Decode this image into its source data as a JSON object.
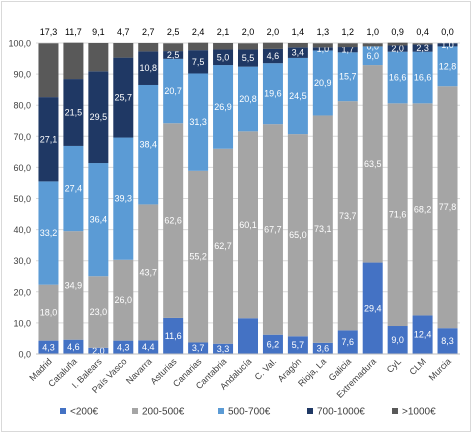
{
  "chart_data": {
    "type": "bar",
    "stacked": true,
    "categories": [
      "Madrid",
      "Cataluña",
      "I. Balears",
      "País Vasco",
      "Navarra",
      "Asturias",
      "Canarias",
      "Cantabria",
      "Andalucía",
      "C. Val.",
      "Aragón",
      "Rioja, La",
      "Galicia",
      "Extremadura",
      "CyL",
      "CLM",
      "Murcia"
    ],
    "series": [
      {
        "name": "<200€",
        "color": "#4472c4",
        "label_color": "#ffffff",
        "values": [
          4.3,
          4.6,
          2.0,
          4.3,
          4.4,
          11.6,
          3.7,
          3.3,
          11.5,
          6.2,
          5.7,
          3.6,
          7.6,
          29.4,
          9.0,
          12.4,
          8.3
        ],
        "labels": [
          "4,3",
          "4,6",
          "2,0",
          "4,3",
          "4,4",
          "11,6",
          "3,7",
          "3,3",
          "",
          "6,2",
          "5,7",
          "3,6",
          "7,6",
          "29,4",
          "9,0",
          "12,4",
          "8,3"
        ]
      },
      {
        "name": "200-500€",
        "color": "#a5a5a5",
        "label_color": "#ffffff",
        "values": [
          18.0,
          34.9,
          23.0,
          26.0,
          43.7,
          62.6,
          55.2,
          62.7,
          60.1,
          67.7,
          65.0,
          73.1,
          73.7,
          63.5,
          71.6,
          68.2,
          77.8
        ],
        "labels": [
          "18,0",
          "34,9",
          "23,0",
          "26,0",
          "43,7",
          "62,6",
          "55,2",
          "62,7",
          "60,1",
          "67,7",
          "65,0",
          "73,1",
          "73,7",
          "63,5",
          "71,6",
          "68,2",
          "77,8"
        ]
      },
      {
        "name": "500-700€",
        "color": "#5b9bd5",
        "label_color": "#ffffff",
        "values": [
          33.2,
          27.4,
          36.4,
          39.3,
          38.4,
          20.7,
          31.3,
          26.9,
          20.8,
          19.6,
          24.5,
          20.9,
          15.7,
          6.0,
          16.6,
          16.6,
          12.8
        ],
        "labels": [
          "33,2",
          "27,4",
          "36,4",
          "39,3",
          "38,4",
          "20,7",
          "31,3",
          "26,9",
          "20,8",
          "19,6",
          "24,5",
          "20,9",
          "15,7",
          "6,0",
          "16,6",
          "16,6",
          "12,8"
        ]
      },
      {
        "name": "700-1000€",
        "color": "#1f3864",
        "label_color": "#ffffff",
        "values": [
          27.1,
          21.5,
          29.5,
          25.7,
          10.8,
          2.5,
          7.5,
          5.0,
          5.5,
          4.6,
          3.4,
          1.0,
          1.7,
          0.0,
          2.0,
          2.3,
          1.0
        ],
        "labels": [
          "27,1",
          "21,5",
          "29,5",
          "25,7",
          "10,8",
          "2,5",
          "7,5",
          "5,0",
          "5,5",
          "4,6",
          "3,4",
          "1,0",
          "1,7",
          "0,0",
          "2,0",
          "2,3",
          "1,0"
        ]
      },
      {
        "name": ">1000€",
        "color": "#595959",
        "label_color": "#000000",
        "values": [
          17.3,
          11.7,
          9.1,
          4.7,
          2.7,
          2.5,
          2.4,
          2.1,
          2.0,
          2.0,
          1.4,
          1.3,
          1.2,
          1.0,
          0.9,
          0.4,
          0.0
        ],
        "labels": [
          "17,3",
          "11,7",
          "9,1",
          "4,7",
          "2,7",
          "2,5",
          "2,4",
          "2,1",
          "2,0",
          "2,0",
          "1,4",
          "1,3",
          "1,2",
          "1,0",
          "0,9",
          "0,4",
          "0,0"
        ]
      }
    ],
    "ylim": [
      0,
      100
    ],
    "yticks": [
      "0,0",
      "10,0",
      "20,0",
      "30,0",
      "40,0",
      "50,0",
      "60,0",
      "70,0",
      "80,0",
      "90,0",
      "100,0"
    ],
    "grid": true,
    "legend_position": "bottom",
    "title": "",
    "xlabel": "",
    "ylabel": ""
  }
}
